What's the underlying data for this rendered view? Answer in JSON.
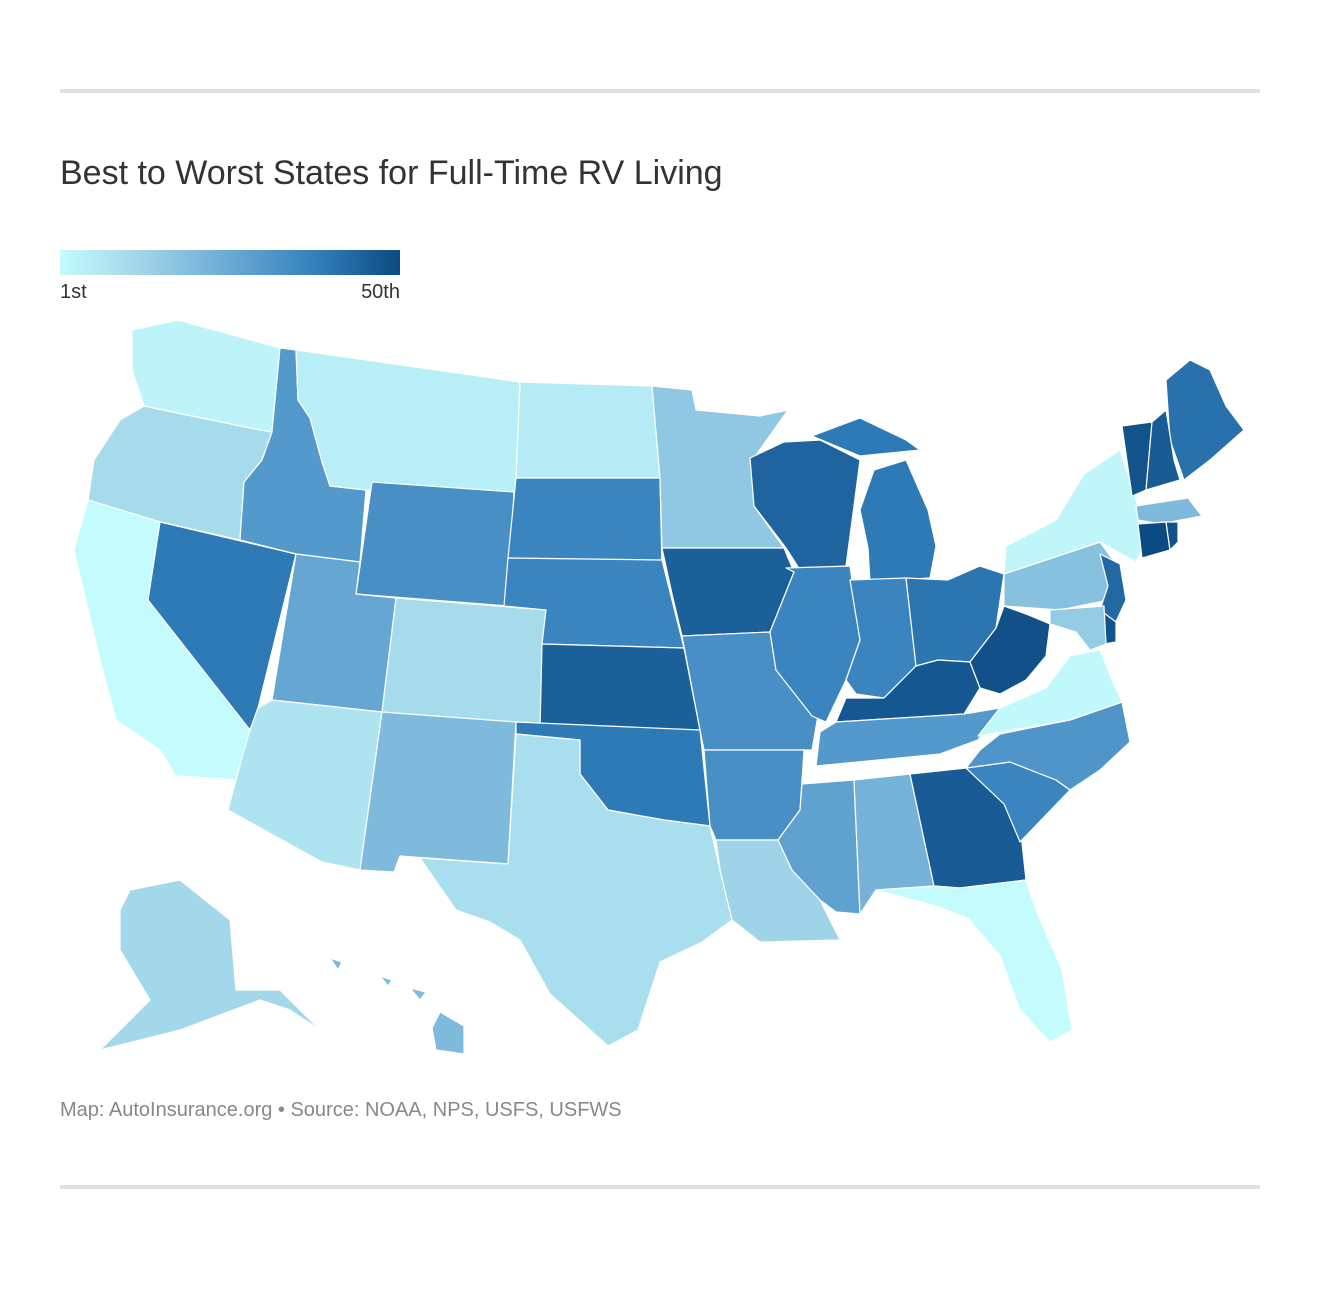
{
  "title": "Best to Worst States for Full-Time RV Living",
  "legend": {
    "min_label": "1st",
    "max_label": "50th",
    "colors": [
      "#c4fbfd",
      "#9fd3e8",
      "#6aa9d4",
      "#3380bd",
      "#0c4a82"
    ]
  },
  "source": "Map: AutoInsurance.org • Source: NOAA, NPS, USFS, USFWS",
  "map_data": {
    "type": "choropleth",
    "metric": "rank",
    "scale": [
      1,
      50
    ],
    "states": [
      {
        "code": "WA",
        "shade": 0.05
      },
      {
        "code": "OR",
        "shade": 0.2
      },
      {
        "code": "CA",
        "shade": 0.0
      },
      {
        "code": "NV",
        "shade": 0.78
      },
      {
        "code": "ID",
        "shade": 0.6
      },
      {
        "code": "MT",
        "shade": 0.08
      },
      {
        "code": "WY",
        "shade": 0.66
      },
      {
        "code": "UT",
        "shade": 0.52
      },
      {
        "code": "AZ",
        "shade": 0.15
      },
      {
        "code": "CO",
        "shade": 0.2
      },
      {
        "code": "NM",
        "shade": 0.4
      },
      {
        "code": "ND",
        "shade": 0.1
      },
      {
        "code": "SD",
        "shade": 0.72
      },
      {
        "code": "NE",
        "shade": 0.72
      },
      {
        "code": "KS",
        "shade": 0.9
      },
      {
        "code": "OK",
        "shade": 0.78
      },
      {
        "code": "TX",
        "shade": 0.18
      },
      {
        "code": "MN",
        "shade": 0.32
      },
      {
        "code": "IA",
        "shade": 0.9
      },
      {
        "code": "MO",
        "shade": 0.66
      },
      {
        "code": "AR",
        "shade": 0.66
      },
      {
        "code": "LA",
        "shade": 0.25
      },
      {
        "code": "WI",
        "shade": 0.88
      },
      {
        "code": "IL",
        "shade": 0.72
      },
      {
        "code": "MI",
        "shade": 0.78
      },
      {
        "code": "IN",
        "shade": 0.72
      },
      {
        "code": "OH",
        "shade": 0.8
      },
      {
        "code": "KY",
        "shade": 0.94
      },
      {
        "code": "TN",
        "shade": 0.6
      },
      {
        "code": "MS",
        "shade": 0.55
      },
      {
        "code": "AL",
        "shade": 0.45
      },
      {
        "code": "GA",
        "shade": 0.92
      },
      {
        "code": "FL",
        "shade": 0.0
      },
      {
        "code": "SC",
        "shade": 0.72
      },
      {
        "code": "NC",
        "shade": 0.62
      },
      {
        "code": "VA",
        "shade": 0.02
      },
      {
        "code": "WV",
        "shade": 0.97
      },
      {
        "code": "PA",
        "shade": 0.36
      },
      {
        "code": "NY",
        "shade": 0.03
      },
      {
        "code": "ME",
        "shade": 0.82
      },
      {
        "code": "VT",
        "shade": 0.96
      },
      {
        "code": "NH",
        "shade": 0.92
      },
      {
        "code": "MA",
        "shade": 0.4
      },
      {
        "code": "CT",
        "shade": 1.0
      },
      {
        "code": "RI",
        "shade": 0.97
      },
      {
        "code": "NJ",
        "shade": 0.86
      },
      {
        "code": "DE",
        "shade": 0.96
      },
      {
        "code": "MD",
        "shade": 0.3
      },
      {
        "code": "AK",
        "shade": 0.22
      },
      {
        "code": "HI",
        "shade": 0.4
      }
    ]
  }
}
